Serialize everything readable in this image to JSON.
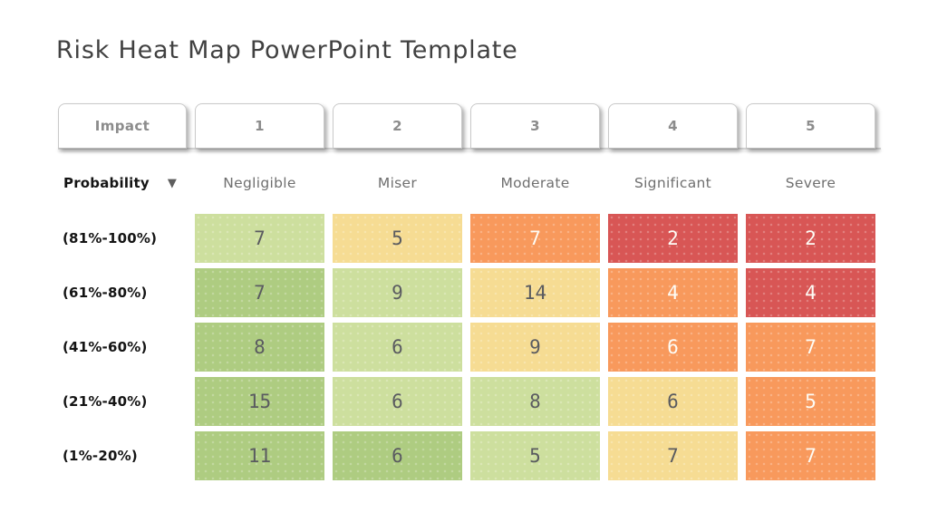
{
  "title": "Risk Heat Map PowerPoint Template",
  "matrix": {
    "corner_tab_label": "Impact",
    "probability_header": "Probability",
    "sort_arrow_icon": "▼"
  },
  "chart_data": {
    "type": "heatmap",
    "title": "Risk Heat Map PowerPoint Template",
    "xlabel": "Impact",
    "ylabel": "Probability",
    "x_tick_numbers": [
      "1",
      "2",
      "3",
      "4",
      "5"
    ],
    "x_tick_labels": [
      "Negligible",
      "Miser",
      "Moderate",
      "Significant",
      "Severe"
    ],
    "y_tick_labels": [
      "(81%-100%)",
      "(61%-80%)",
      "(41%-60%)",
      "(21%-40%)",
      "(1%-20%)"
    ],
    "values": [
      [
        7,
        5,
        7,
        2,
        2
      ],
      [
        7,
        9,
        14,
        4,
        4
      ],
      [
        8,
        6,
        9,
        6,
        7
      ],
      [
        15,
        6,
        8,
        6,
        5
      ],
      [
        11,
        6,
        5,
        7,
        7
      ]
    ],
    "cell_levels": [
      [
        "green_light",
        "yellow",
        "orange",
        "red",
        "red"
      ],
      [
        "green_mid",
        "green_light",
        "yellow",
        "orange",
        "red"
      ],
      [
        "green_mid",
        "green_light",
        "yellow",
        "orange",
        "orange"
      ],
      [
        "green_mid",
        "green_light",
        "green_light",
        "yellow",
        "orange"
      ],
      [
        "green_mid",
        "green_mid",
        "green_light",
        "yellow",
        "orange"
      ]
    ],
    "legend": "none",
    "grid": "off"
  },
  "heat_levels": {
    "green_light": {
      "bg": "#cddf9e",
      "text": "#5a5b60"
    },
    "green_mid": {
      "bg": "#aecc81",
      "text": "#5a5b60"
    },
    "yellow": {
      "bg": "#f6dc93",
      "text": "#5a5b60"
    },
    "orange": {
      "bg": "#f8995c",
      "text": "#fdfcf6"
    },
    "red": {
      "bg": "#d85655",
      "text": "#fdfcf6"
    }
  }
}
